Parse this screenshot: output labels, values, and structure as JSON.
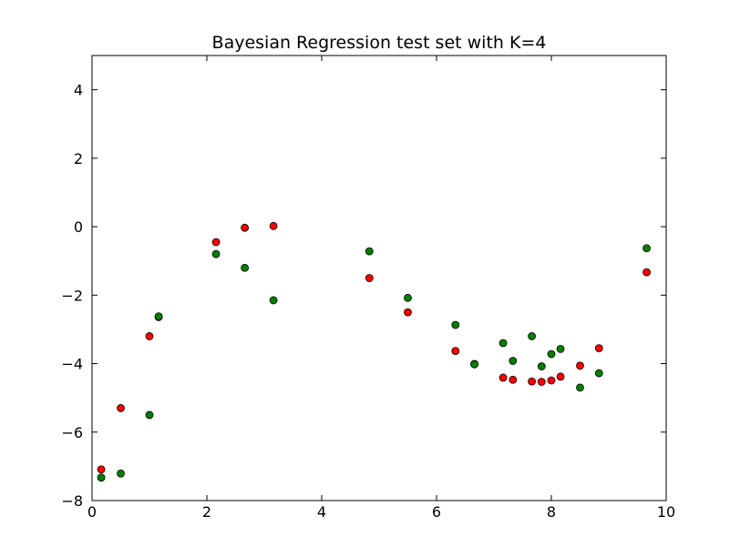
{
  "chart_data": {
    "type": "scatter",
    "title": "Bayesian Regression test set with K=4",
    "xlabel": "",
    "ylabel": "",
    "xlim": [
      0,
      10
    ],
    "ylim": [
      -8,
      5
    ],
    "xticks": [
      0,
      2,
      4,
      6,
      8,
      10
    ],
    "yticks": [
      -8,
      -6,
      -4,
      -2,
      0,
      2,
      4
    ],
    "grid": false,
    "series": [
      {
        "color": "#ff0000",
        "points": [
          [
            0.16,
            -7.09
          ],
          [
            0.5,
            -5.3
          ],
          [
            1.0,
            -3.2
          ],
          [
            1.16,
            -2.64
          ],
          [
            2.16,
            -0.45
          ],
          [
            2.66,
            -0.03
          ],
          [
            3.16,
            0.02
          ],
          [
            4.83,
            -1.5
          ],
          [
            5.5,
            -2.5
          ],
          [
            6.33,
            -3.63
          ],
          [
            6.66,
            -4.01
          ],
          [
            7.16,
            -4.41
          ],
          [
            7.33,
            -4.47
          ],
          [
            7.66,
            -4.52
          ],
          [
            7.83,
            -4.53
          ],
          [
            8.0,
            -4.49
          ],
          [
            8.16,
            -4.38
          ],
          [
            8.5,
            -4.06
          ],
          [
            8.83,
            -3.55
          ],
          [
            9.66,
            -1.33
          ]
        ]
      },
      {
        "color": "#008000",
        "points": [
          [
            0.16,
            -7.33
          ],
          [
            0.5,
            -7.21
          ],
          [
            1.0,
            -5.5
          ],
          [
            1.16,
            -2.62
          ],
          [
            2.16,
            -0.8
          ],
          [
            2.66,
            -1.2
          ],
          [
            3.16,
            -2.15
          ],
          [
            4.83,
            -0.72
          ],
          [
            5.5,
            -2.08
          ],
          [
            6.33,
            -2.87
          ],
          [
            6.66,
            -4.02
          ],
          [
            7.16,
            -3.4
          ],
          [
            7.33,
            -3.92
          ],
          [
            7.66,
            -3.2
          ],
          [
            7.83,
            -4.08
          ],
          [
            8.0,
            -3.72
          ],
          [
            8.16,
            -3.57
          ],
          [
            8.5,
            -4.7
          ],
          [
            8.83,
            -4.28
          ],
          [
            9.66,
            -0.63
          ]
        ]
      }
    ]
  }
}
